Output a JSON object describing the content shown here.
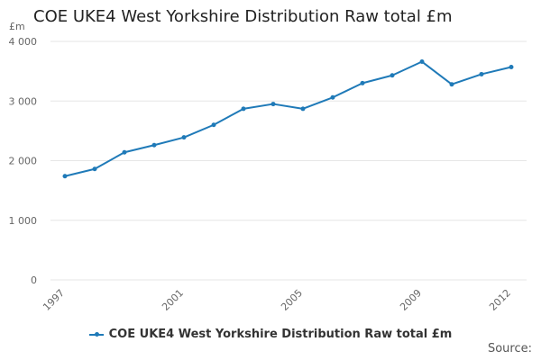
{
  "chart_data": {
    "type": "line",
    "title": "COE UKE4 West Yorkshire Distribution Raw total £m",
    "ylabel": "£m",
    "xlabel": "",
    "x": [
      1997,
      1998,
      1999,
      2000,
      2001,
      2002,
      2003,
      2004,
      2005,
      2006,
      2007,
      2008,
      2009,
      2010,
      2011,
      2012
    ],
    "x_tick_labels": [
      "1997",
      "2001",
      "2005",
      "2009",
      "2012"
    ],
    "y_tick_labels": [
      "0",
      "1 000",
      "2 000",
      "3 000",
      "4 000"
    ],
    "y_ticks": [
      0,
      1000,
      2000,
      3000,
      4000
    ],
    "ylim": [
      0,
      4000
    ],
    "series": [
      {
        "name": "COE UKE4 West Yorkshire Distribution Raw total £m",
        "values": [
          1740,
          1860,
          2140,
          2260,
          2390,
          2600,
          2870,
          2950,
          2870,
          3060,
          3300,
          3430,
          3660,
          3280,
          3450,
          3570
        ]
      }
    ],
    "legend": "bottom",
    "grid": true,
    "source_label": "Source:"
  },
  "colors": {
    "series": "#1f7ab8",
    "grid": "#e6e6e6",
    "axis_text": "#666666"
  }
}
